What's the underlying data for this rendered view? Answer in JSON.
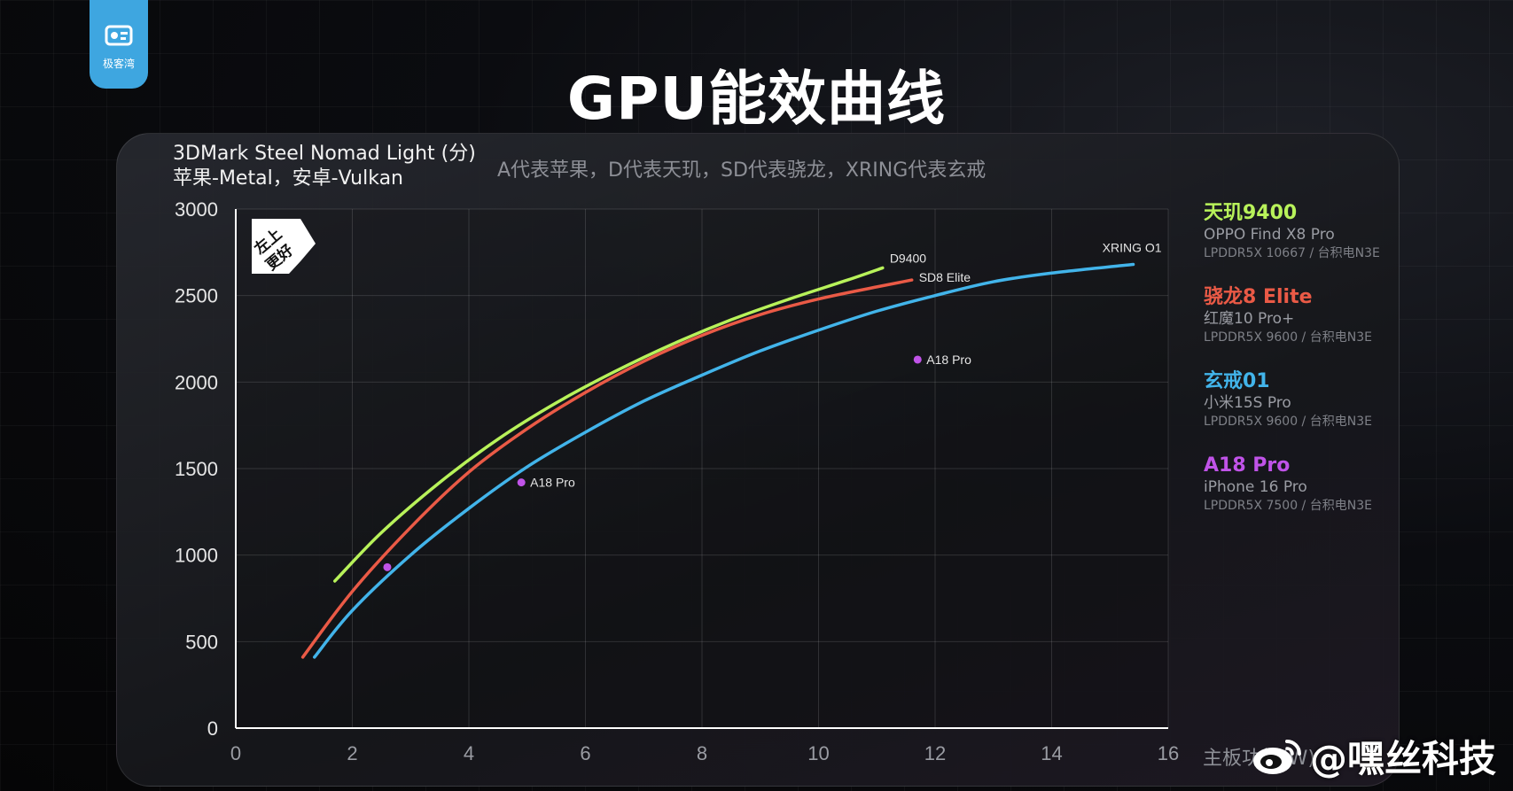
{
  "header": {
    "logo_text": "极客湾",
    "title": "GPU能效曲线"
  },
  "chart_title_line1": "3DMark Steel Nomad Light (分)",
  "chart_title_line2": "苹果-Metal，安卓-Vulkan",
  "note": "A代表苹果，D代表天玑，SD代表骁龙，XRING代表玄戒",
  "badge": {
    "line1": "左上",
    "line2": "更好"
  },
  "legend": [
    {
      "name": "天玑9400",
      "device": "OPPO Find X8 Pro",
      "memory": "LPDDR5X 10667 / 台积电N3E",
      "color": "#b8f25a"
    },
    {
      "name": "骁龙8 Elite",
      "device": "红魔10 Pro+",
      "memory": "LPDDR5X 9600 / 台积电N3E",
      "color": "#ea5a46"
    },
    {
      "name": "玄戒01",
      "device": "小米15S Pro",
      "memory": "LPDDR5X 9600 / 台积电N3E",
      "color": "#42b4ea"
    },
    {
      "name": "A18 Pro",
      "device": "iPhone 16 Pro",
      "memory": "LPDDR5X 7500 / 台积电N3E",
      "color": "#c053e8"
    }
  ],
  "xunit": "主板功耗(W)",
  "watermark": "@嘿丝科技",
  "chart_data": {
    "type": "line",
    "xlim": [
      0,
      16
    ],
    "ylim": [
      0,
      3000
    ],
    "xticks": [
      0,
      2,
      4,
      6,
      8,
      10,
      12,
      14,
      16
    ],
    "yticks": [
      0,
      500,
      1000,
      1500,
      2000,
      2500,
      3000
    ],
    "grid": true,
    "legend_position": "right",
    "series": [
      {
        "name": "D9400",
        "label": "D9400",
        "color": "#b8f25a",
        "x": [
          1.7,
          2.5,
          3.5,
          4.5,
          5.5,
          6.5,
          7.5,
          8.5,
          9.5,
          10.5,
          11.1
        ],
        "y": [
          850,
          1130,
          1420,
          1670,
          1880,
          2060,
          2220,
          2360,
          2480,
          2590,
          2660
        ]
      },
      {
        "name": "SD8 Elite",
        "label": "SD8 Elite",
        "color": "#ea5a46",
        "x": [
          1.15,
          2,
          3,
          4,
          5,
          6,
          7,
          8,
          9,
          10,
          11,
          11.6
        ],
        "y": [
          410,
          790,
          1160,
          1480,
          1730,
          1940,
          2120,
          2270,
          2390,
          2480,
          2550,
          2590
        ]
      },
      {
        "name": "XRING O1",
        "label": "XRING O1",
        "color": "#42b4ea",
        "x": [
          1.35,
          2,
          3,
          4,
          5,
          6,
          7,
          8,
          9,
          10,
          11,
          12,
          13,
          14,
          15.4
        ],
        "y": [
          410,
          680,
          1000,
          1270,
          1510,
          1710,
          1890,
          2040,
          2180,
          2300,
          2410,
          2500,
          2580,
          2630,
          2680
        ]
      },
      {
        "name": "A18 Pro",
        "type": "scatter",
        "color": "#c053e8",
        "points": [
          {
            "x": 2.6,
            "y": 930,
            "label": ""
          },
          {
            "x": 4.9,
            "y": 1420,
            "label": "A18 Pro"
          },
          {
            "x": 11.7,
            "y": 2130,
            "label": "A18 Pro"
          }
        ]
      }
    ]
  }
}
